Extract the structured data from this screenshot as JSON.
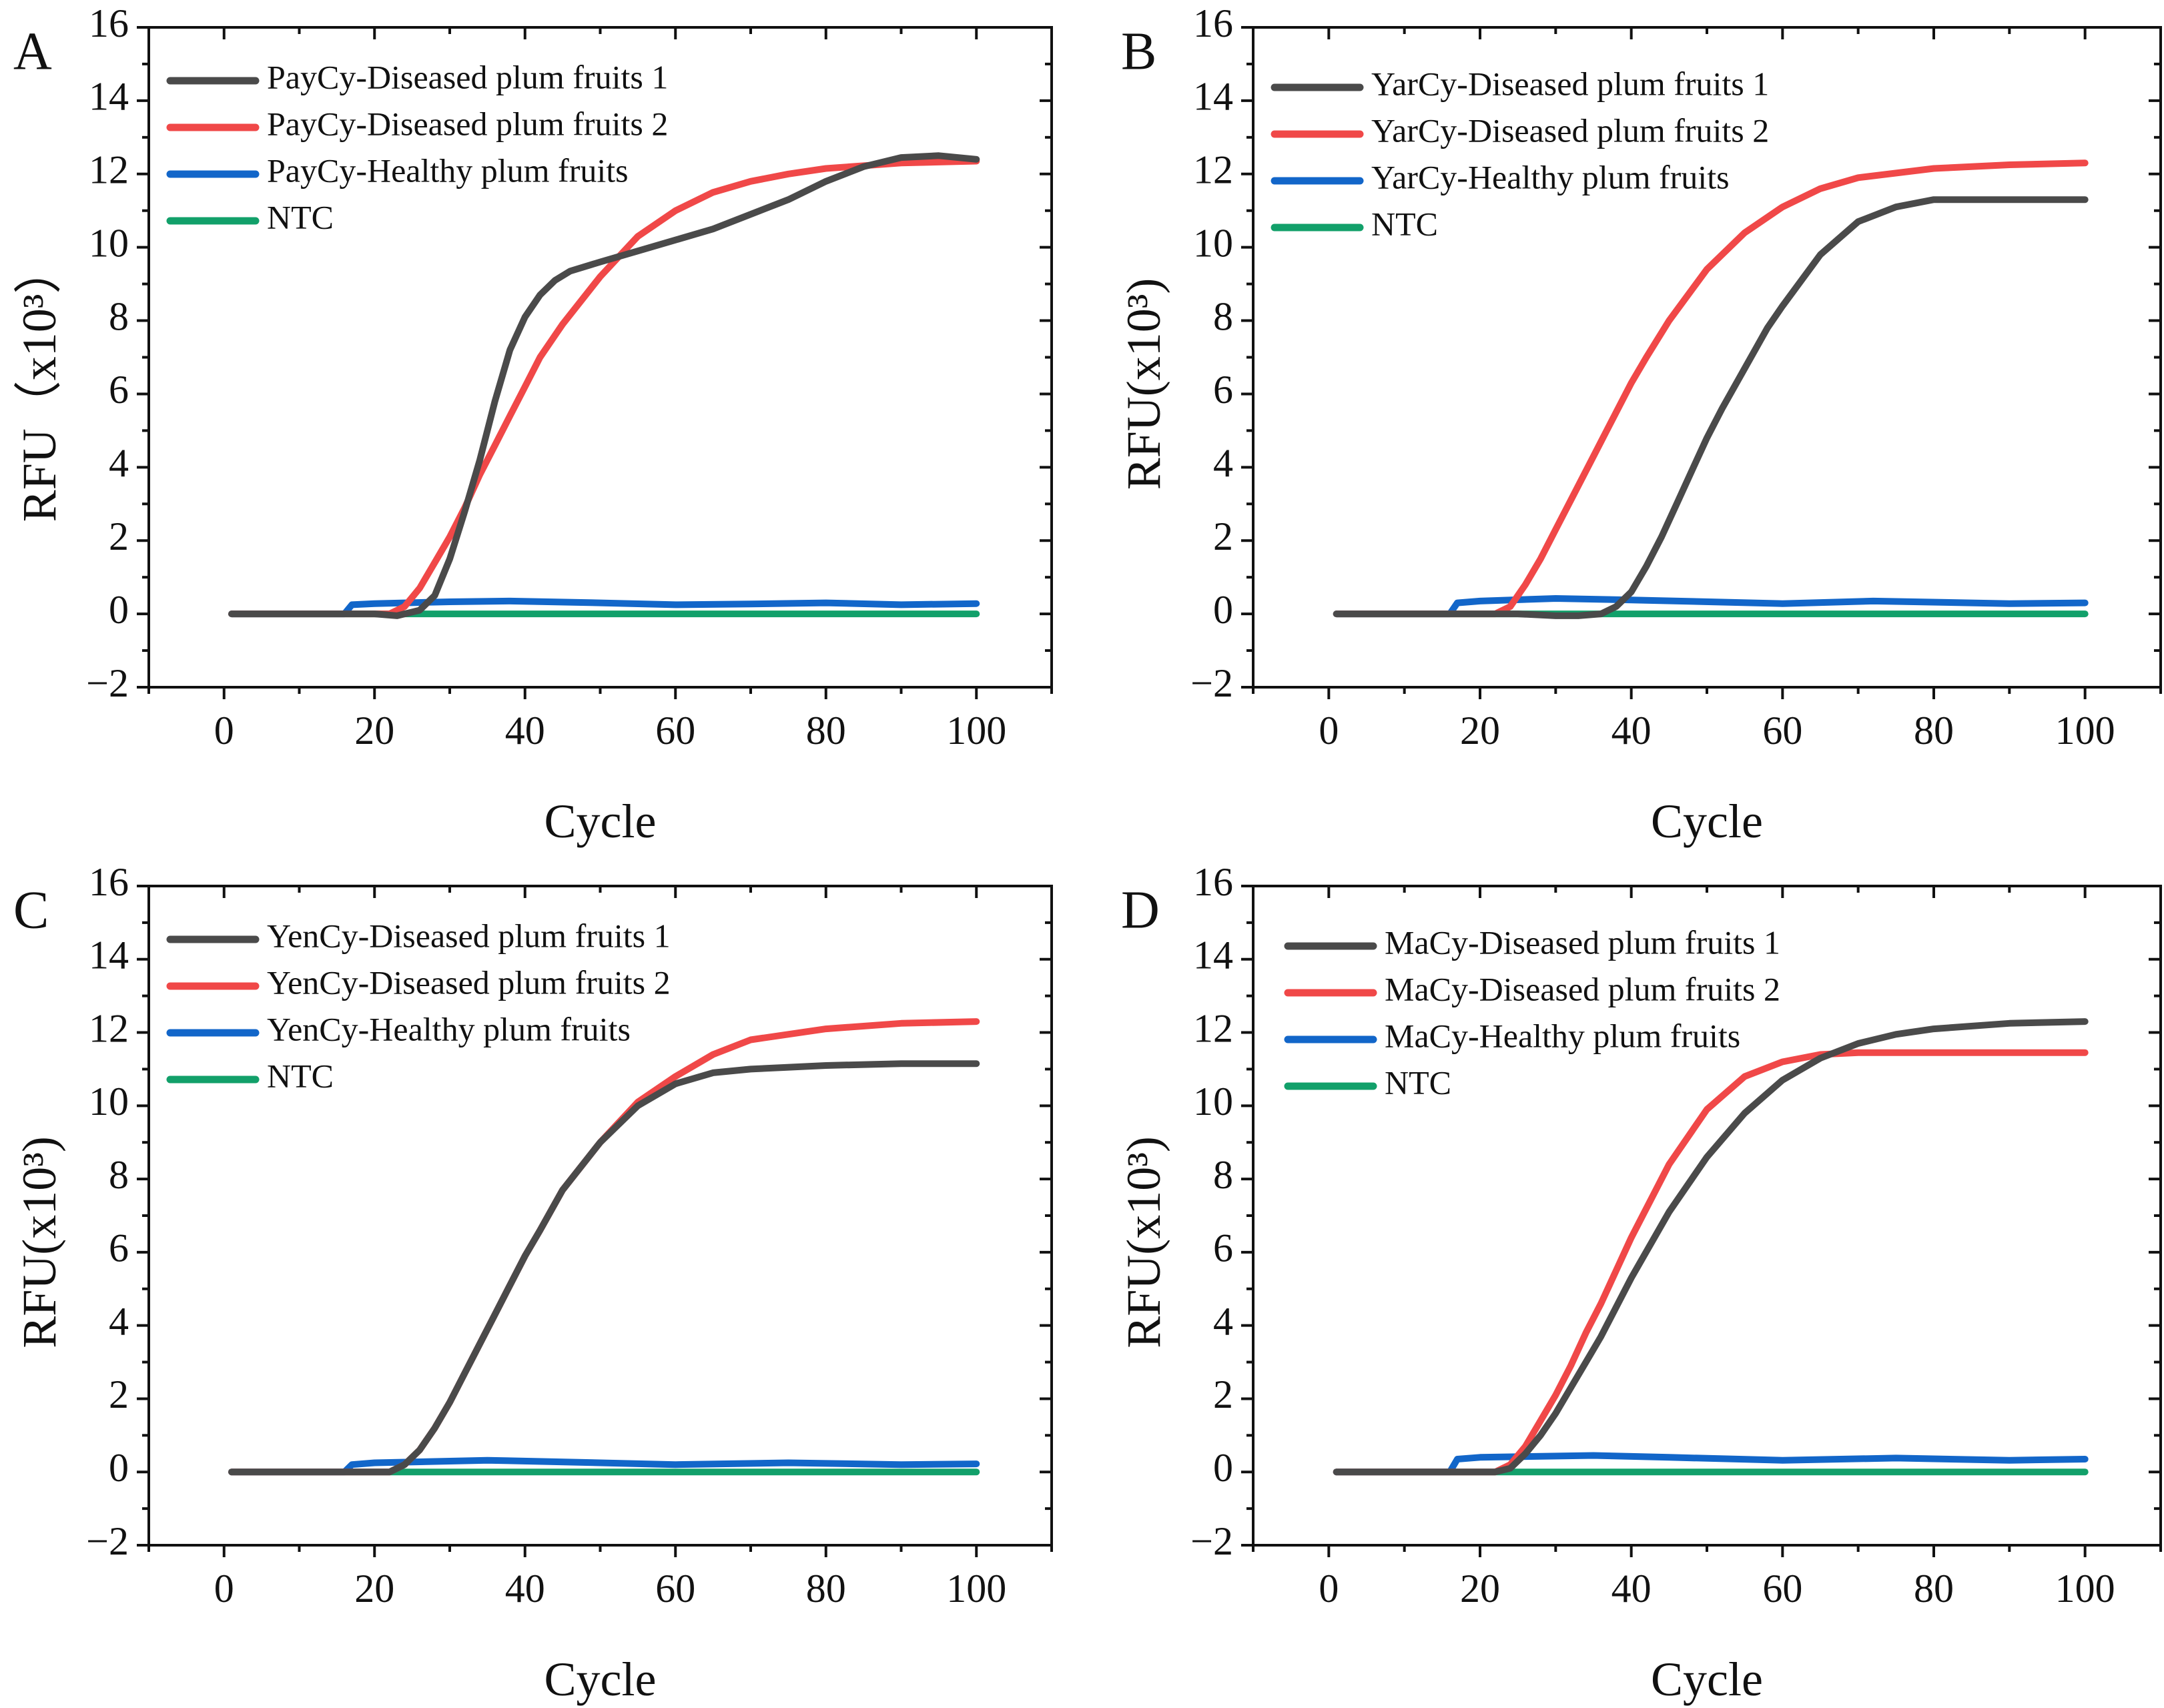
{
  "colors": {
    "diseased1": "#4a4a4a",
    "diseased2": "#f04848",
    "healthy": "#1266c9",
    "ntc": "#12a06a",
    "axis": "#111111"
  },
  "chart_data": [
    {
      "type": "line",
      "panel": "A",
      "xlabel": "Cycle",
      "ylabel": "RFU（x10³）",
      "xlim": [
        -10,
        110
      ],
      "ylim": [
        -2,
        16
      ],
      "xticks": [
        0,
        20,
        40,
        60,
        80,
        100
      ],
      "yticks": [
        -2,
        0,
        2,
        4,
        6,
        8,
        10,
        12,
        14,
        16
      ],
      "legend": "top-left",
      "series": [
        {
          "name": "PayCy-Diseased plum fruits 1",
          "color_key": "diseased1",
          "points": [
            [
              1,
              0
            ],
            [
              20,
              0
            ],
            [
              23,
              -0.05
            ],
            [
              26,
              0.1
            ],
            [
              28,
              0.5
            ],
            [
              30,
              1.5
            ],
            [
              32,
              2.8
            ],
            [
              34,
              4.2
            ],
            [
              36,
              5.8
            ],
            [
              38,
              7.2
            ],
            [
              40,
              8.1
            ],
            [
              42,
              8.7
            ],
            [
              44,
              9.1
            ],
            [
              46,
              9.35
            ],
            [
              50,
              9.6
            ],
            [
              55,
              9.9
            ],
            [
              60,
              10.2
            ],
            [
              65,
              10.5
            ],
            [
              70,
              10.9
            ],
            [
              75,
              11.3
            ],
            [
              80,
              11.8
            ],
            [
              85,
              12.2
            ],
            [
              90,
              12.45
            ],
            [
              95,
              12.5
            ],
            [
              100,
              12.4
            ]
          ]
        },
        {
          "name": "PayCy-Diseased plum fruits 2",
          "color_key": "diseased2",
          "points": [
            [
              1,
              0
            ],
            [
              22,
              0
            ],
            [
              24,
              0.2
            ],
            [
              26,
              0.7
            ],
            [
              28,
              1.4
            ],
            [
              30,
              2.1
            ],
            [
              32,
              2.9
            ],
            [
              34,
              3.8
            ],
            [
              36,
              4.6
            ],
            [
              38,
              5.4
            ],
            [
              40,
              6.2
            ],
            [
              42,
              7.0
            ],
            [
              45,
              7.9
            ],
            [
              50,
              9.2
            ],
            [
              55,
              10.3
            ],
            [
              60,
              11.0
            ],
            [
              65,
              11.5
            ],
            [
              70,
              11.8
            ],
            [
              75,
              12.0
            ],
            [
              80,
              12.15
            ],
            [
              90,
              12.3
            ],
            [
              100,
              12.35
            ]
          ]
        },
        {
          "name": "PayCy-Healthy plum fruits",
          "color_key": "healthy",
          "points": [
            [
              1,
              0
            ],
            [
              16,
              0
            ],
            [
              17,
              0.25
            ],
            [
              20,
              0.28
            ],
            [
              30,
              0.33
            ],
            [
              38,
              0.35
            ],
            [
              50,
              0.3
            ],
            [
              60,
              0.25
            ],
            [
              70,
              0.27
            ],
            [
              80,
              0.3
            ],
            [
              90,
              0.25
            ],
            [
              100,
              0.28
            ]
          ]
        },
        {
          "name": "NTC",
          "color_key": "ntc",
          "points": [
            [
              1,
              0
            ],
            [
              100,
              0
            ]
          ]
        }
      ]
    },
    {
      "type": "line",
      "panel": "B",
      "xlabel": "Cycle",
      "ylabel": "RFU(x10³)",
      "xlim": [
        -10,
        110
      ],
      "ylim": [
        -2,
        16
      ],
      "xticks": [
        0,
        20,
        40,
        60,
        80,
        100
      ],
      "yticks": [
        -2,
        0,
        2,
        4,
        6,
        8,
        10,
        12,
        14,
        16
      ],
      "legend": "top-left",
      "series": [
        {
          "name": "YarCy-Diseased plum fruits 1",
          "color_key": "diseased1",
          "points": [
            [
              1,
              0
            ],
            [
              25,
              0
            ],
            [
              30,
              -0.05
            ],
            [
              33,
              -0.05
            ],
            [
              36,
              0
            ],
            [
              38,
              0.2
            ],
            [
              40,
              0.6
            ],
            [
              42,
              1.3
            ],
            [
              44,
              2.1
            ],
            [
              46,
              3.0
            ],
            [
              48,
              3.9
            ],
            [
              50,
              4.8
            ],
            [
              52,
              5.6
            ],
            [
              55,
              6.7
            ],
            [
              58,
              7.8
            ],
            [
              60,
              8.4
            ],
            [
              65,
              9.8
            ],
            [
              70,
              10.7
            ],
            [
              75,
              11.1
            ],
            [
              80,
              11.3
            ],
            [
              85,
              11.3
            ],
            [
              100,
              11.3
            ]
          ]
        },
        {
          "name": "YarCy-Diseased plum fruits 2",
          "color_key": "diseased2",
          "points": [
            [
              1,
              0
            ],
            [
              22,
              0
            ],
            [
              24,
              0.2
            ],
            [
              26,
              0.8
            ],
            [
              28,
              1.5
            ],
            [
              30,
              2.3
            ],
            [
              32,
              3.1
            ],
            [
              34,
              3.9
            ],
            [
              36,
              4.7
            ],
            [
              38,
              5.5
            ],
            [
              40,
              6.3
            ],
            [
              42,
              7.0
            ],
            [
              45,
              8.0
            ],
            [
              50,
              9.4
            ],
            [
              55,
              10.4
            ],
            [
              60,
              11.1
            ],
            [
              65,
              11.6
            ],
            [
              70,
              11.9
            ],
            [
              80,
              12.15
            ],
            [
              90,
              12.25
            ],
            [
              100,
              12.3
            ]
          ]
        },
        {
          "name": "YarCy-Healthy plum fruits",
          "color_key": "healthy",
          "points": [
            [
              1,
              0
            ],
            [
              16,
              0
            ],
            [
              17,
              0.3
            ],
            [
              20,
              0.35
            ],
            [
              30,
              0.42
            ],
            [
              40,
              0.38
            ],
            [
              60,
              0.28
            ],
            [
              72,
              0.35
            ],
            [
              90,
              0.28
            ],
            [
              100,
              0.3
            ]
          ]
        },
        {
          "name": "NTC",
          "color_key": "ntc",
          "points": [
            [
              1,
              0
            ],
            [
              100,
              0
            ]
          ]
        }
      ]
    },
    {
      "type": "line",
      "panel": "C",
      "xlabel": "Cycle",
      "ylabel": "RFU(x10³)",
      "xlim": [
        -10,
        110
      ],
      "ylim": [
        -2,
        16
      ],
      "xticks": [
        0,
        20,
        40,
        60,
        80,
        100
      ],
      "yticks": [
        -2,
        0,
        2,
        4,
        6,
        8,
        10,
        12,
        14,
        16
      ],
      "legend": "top-left",
      "series": [
        {
          "name": "YenCy-Diseased plum fruits 1",
          "color_key": "diseased1",
          "points": [
            [
              1,
              0
            ],
            [
              22,
              0
            ],
            [
              24,
              0.2
            ],
            [
              26,
              0.6
            ],
            [
              28,
              1.2
            ],
            [
              30,
              1.9
            ],
            [
              32,
              2.7
            ],
            [
              34,
              3.5
            ],
            [
              36,
              4.3
            ],
            [
              38,
              5.1
            ],
            [
              40,
              5.9
            ],
            [
              42,
              6.6
            ],
            [
              45,
              7.7
            ],
            [
              50,
              9.0
            ],
            [
              55,
              10.0
            ],
            [
              60,
              10.6
            ],
            [
              65,
              10.9
            ],
            [
              70,
              11.0
            ],
            [
              80,
              11.1
            ],
            [
              90,
              11.15
            ],
            [
              100,
              11.15
            ]
          ]
        },
        {
          "name": "YenCy-Diseased plum fruits 2",
          "color_key": "diseased2",
          "points": [
            [
              1,
              0
            ],
            [
              22,
              0
            ],
            [
              24,
              0.2
            ],
            [
              26,
              0.6
            ],
            [
              28,
              1.2
            ],
            [
              30,
              1.9
            ],
            [
              32,
              2.7
            ],
            [
              34,
              3.5
            ],
            [
              36,
              4.3
            ],
            [
              38,
              5.1
            ],
            [
              40,
              5.9
            ],
            [
              42,
              6.6
            ],
            [
              45,
              7.7
            ],
            [
              50,
              9.0
            ],
            [
              55,
              10.1
            ],
            [
              60,
              10.8
            ],
            [
              65,
              11.4
            ],
            [
              70,
              11.8
            ],
            [
              80,
              12.1
            ],
            [
              90,
              12.25
            ],
            [
              100,
              12.3
            ]
          ]
        },
        {
          "name": "YenCy-Healthy plum fruits",
          "color_key": "healthy",
          "points": [
            [
              1,
              0
            ],
            [
              16,
              0
            ],
            [
              17,
              0.2
            ],
            [
              20,
              0.25
            ],
            [
              35,
              0.32
            ],
            [
              50,
              0.25
            ],
            [
              60,
              0.2
            ],
            [
              75,
              0.25
            ],
            [
              90,
              0.2
            ],
            [
              100,
              0.22
            ]
          ]
        },
        {
          "name": "NTC",
          "color_key": "ntc",
          "points": [
            [
              1,
              0
            ],
            [
              100,
              0
            ]
          ]
        }
      ]
    },
    {
      "type": "line",
      "panel": "D",
      "xlabel": "Cycle",
      "ylabel": "RFU(x10³)",
      "xlim": [
        -10,
        110
      ],
      "ylim": [
        -2,
        16
      ],
      "xticks": [
        0,
        20,
        40,
        60,
        80,
        100
      ],
      "yticks": [
        -2,
        0,
        2,
        4,
        6,
        8,
        10,
        12,
        14,
        16
      ],
      "legend": "top-left",
      "series": [
        {
          "name": "MaCy-Diseased plum fruits 1",
          "color_key": "diseased1",
          "points": [
            [
              1,
              0
            ],
            [
              22,
              0
            ],
            [
              24,
              0.1
            ],
            [
              26,
              0.5
            ],
            [
              28,
              1.0
            ],
            [
              30,
              1.6
            ],
            [
              32,
              2.3
            ],
            [
              34,
              3.0
            ],
            [
              36,
              3.7
            ],
            [
              38,
              4.5
            ],
            [
              40,
              5.3
            ],
            [
              45,
              7.1
            ],
            [
              50,
              8.6
            ],
            [
              55,
              9.8
            ],
            [
              60,
              10.7
            ],
            [
              65,
              11.3
            ],
            [
              70,
              11.7
            ],
            [
              75,
              11.95
            ],
            [
              80,
              12.1
            ],
            [
              90,
              12.25
            ],
            [
              100,
              12.3
            ]
          ]
        },
        {
          "name": "MaCy-Diseased plum fruits 2",
          "color_key": "diseased2",
          "points": [
            [
              1,
              0
            ],
            [
              22,
              0
            ],
            [
              24,
              0.2
            ],
            [
              26,
              0.7
            ],
            [
              28,
              1.4
            ],
            [
              30,
              2.1
            ],
            [
              32,
              2.9
            ],
            [
              34,
              3.8
            ],
            [
              36,
              4.6
            ],
            [
              38,
              5.5
            ],
            [
              40,
              6.4
            ],
            [
              45,
              8.4
            ],
            [
              50,
              9.9
            ],
            [
              55,
              10.8
            ],
            [
              60,
              11.2
            ],
            [
              65,
              11.4
            ],
            [
              70,
              11.45
            ],
            [
              100,
              11.45
            ]
          ]
        },
        {
          "name": "MaCy-Healthy plum fruits",
          "color_key": "healthy",
          "points": [
            [
              1,
              0
            ],
            [
              16,
              0
            ],
            [
              17,
              0.35
            ],
            [
              20,
              0.4
            ],
            [
              35,
              0.45
            ],
            [
              45,
              0.4
            ],
            [
              60,
              0.32
            ],
            [
              75,
              0.38
            ],
            [
              90,
              0.32
            ],
            [
              100,
              0.35
            ]
          ]
        },
        {
          "name": "NTC",
          "color_key": "ntc",
          "points": [
            [
              1,
              0
            ],
            [
              100,
              0
            ]
          ]
        }
      ]
    }
  ]
}
